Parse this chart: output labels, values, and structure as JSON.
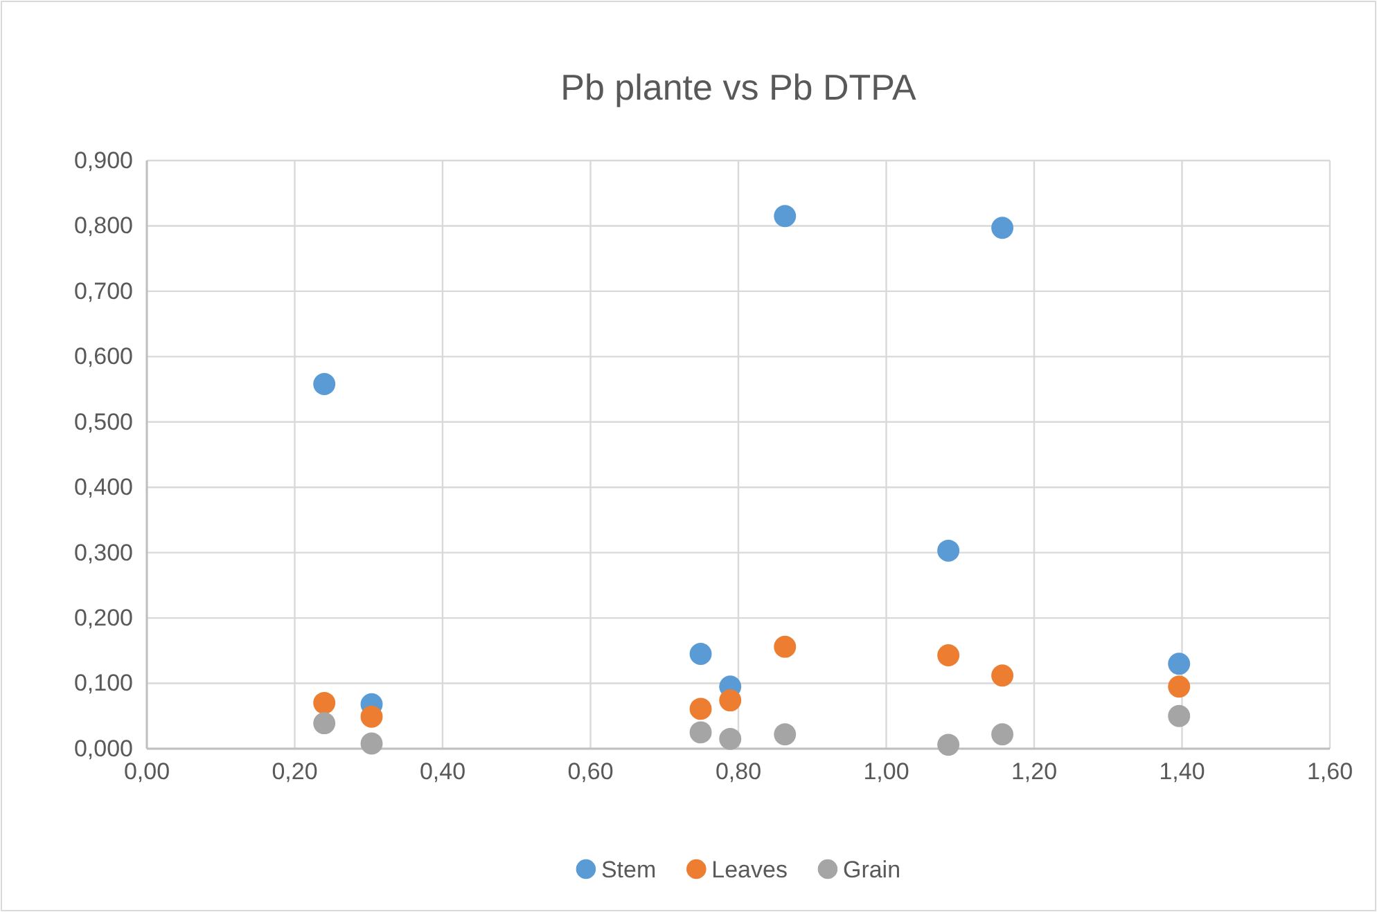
{
  "chart_data": {
    "type": "scatter",
    "title": "Pb plante vs Pb DTPA",
    "x": [
      0.24,
      0.304,
      0.749,
      0.789,
      0.863,
      1.084,
      1.157,
      1.396
    ],
    "series": [
      {
        "name": "Stem",
        "color": "#5b9bd5",
        "values": [
          0.558,
          0.068,
          0.145,
          0.095,
          0.815,
          0.303,
          0.797,
          0.13
        ]
      },
      {
        "name": "Leaves",
        "color": "#ed7d31",
        "values": [
          0.07,
          0.049,
          0.061,
          0.074,
          0.156,
          0.143,
          0.112,
          0.095
        ]
      },
      {
        "name": "Grain",
        "color": "#a5a5a5",
        "values": [
          0.039,
          0.008,
          0.025,
          0.015,
          0.022,
          0.006,
          0.022,
          0.05
        ]
      }
    ],
    "xlim": [
      0,
      1.6
    ],
    "xticks": [
      {
        "value": 0,
        "label": "0,00"
      },
      {
        "value": 0.2,
        "label": "0,20"
      },
      {
        "value": 0.4,
        "label": "0,40"
      },
      {
        "value": 0.6,
        "label": "0,60"
      },
      {
        "value": 0.8,
        "label": "0,80"
      },
      {
        "value": 1.0,
        "label": "1,00"
      },
      {
        "value": 1.2,
        "label": "1,20"
      },
      {
        "value": 1.4,
        "label": "1,40"
      },
      {
        "value": 1.6,
        "label": "1,60"
      }
    ],
    "ylim": [
      0,
      0.9
    ],
    "yticks": [
      {
        "value": 0,
        "label": "0,000"
      },
      {
        "value": 0.1,
        "label": "0,100"
      },
      {
        "value": 0.2,
        "label": "0,200"
      },
      {
        "value": 0.3,
        "label": "0,300"
      },
      {
        "value": 0.4,
        "label": "0,400"
      },
      {
        "value": 0.5,
        "label": "0,500"
      },
      {
        "value": 0.6,
        "label": "0,600"
      },
      {
        "value": 0.7,
        "label": "0,700"
      },
      {
        "value": 0.8,
        "label": "0,800"
      },
      {
        "value": 0.9,
        "label": "0,900"
      }
    ],
    "grid": true,
    "legend": "bottom",
    "marker": "circle"
  }
}
